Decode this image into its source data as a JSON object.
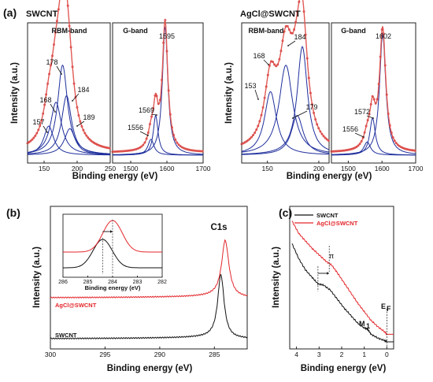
{
  "colors": {
    "fit": "#1f2f9c",
    "data": "#d9413f",
    "envelope": "#e05a55",
    "black": "#111111",
    "red": "#e3262b"
  },
  "chart_data": [
    {
      "id": "a1",
      "type": "line",
      "panel_label": "(a)",
      "sample": "SWCNT",
      "title": "RBM-band",
      "xlabel": "Binding energy (eV)",
      "ylabel": "Intensity (a.u.)",
      "xlim": [
        125,
        250
      ],
      "xticks": [
        "150",
        "200",
        "250"
      ],
      "peaks": [
        {
          "center": 157,
          "height": 0.22,
          "width": 9,
          "label": "157"
        },
        {
          "center": 168,
          "height": 0.4,
          "width": 10,
          "label": "168"
        },
        {
          "center": 178,
          "height": 0.68,
          "width": 9,
          "label": "178"
        },
        {
          "center": 184,
          "height": 0.45,
          "width": 9,
          "label": "184"
        },
        {
          "center": 189,
          "height": 0.2,
          "width": 10,
          "label": "189"
        }
      ]
    },
    {
      "id": "a2",
      "type": "line",
      "title": "G-band",
      "xlabel": "",
      "ylabel": "",
      "xlim": [
        1450,
        1700
      ],
      "xticks": [
        "1500",
        "1600",
        "1700"
      ],
      "peaks": [
        {
          "center": 1556,
          "height": 0.12,
          "width": 10,
          "label": "1556"
        },
        {
          "center": 1569,
          "height": 0.3,
          "width": 8,
          "label": "1569"
        },
        {
          "center": 1595,
          "height": 0.97,
          "width": 9,
          "label": "1595"
        }
      ]
    },
    {
      "id": "a3",
      "type": "line",
      "sample": "AgCl@SWCNT",
      "title": "RBM-band",
      "xlabel": "Binding energy (eV)",
      "ylabel": "Intensity (a.u.)",
      "xlim": [
        125,
        210
      ],
      "xticks": [
        "150",
        "200"
      ],
      "peaks": [
        {
          "center": 153,
          "height": 0.48,
          "width": 7,
          "label": "153"
        },
        {
          "center": 168,
          "height": 0.68,
          "width": 8,
          "label": "168"
        },
        {
          "center": 179,
          "height": 0.3,
          "width": 7,
          "label": "179"
        },
        {
          "center": 184,
          "height": 0.82,
          "width": 6,
          "label": "184"
        }
      ]
    },
    {
      "id": "a4",
      "type": "line",
      "title": "G-band",
      "xlabel": "",
      "ylabel": "",
      "xlim": [
        1450,
        1700
      ],
      "xticks": [
        "1500",
        "1600",
        "1700"
      ],
      "peaks": [
        {
          "center": 1556,
          "height": 0.1,
          "width": 12,
          "label": "1556"
        },
        {
          "center": 1572,
          "height": 0.28,
          "width": 10,
          "label": "1572"
        },
        {
          "center": 1602,
          "height": 0.92,
          "width": 11,
          "label": "1602"
        }
      ]
    },
    {
      "id": "b",
      "type": "line",
      "panel_label": "(b)",
      "xlabel": "Binding energy (eV)",
      "ylabel": "Intensity (a.u.)",
      "xlim": [
        300,
        282
      ],
      "xticks": [
        "300",
        "295",
        "290",
        "285"
      ],
      "peak_label": "C1s",
      "series": [
        {
          "name": "SWCNT",
          "center": 284.4,
          "height": 0.62,
          "width": 0.35
        },
        {
          "name": "AgCl@SWCNT",
          "center": 284.0,
          "height": 0.55,
          "width": 0.4
        }
      ],
      "inset": {
        "xlabel": "Binding energy (eV)",
        "xlim": [
          286,
          282
        ],
        "xticks": [
          "286",
          "285",
          "284",
          "283",
          "282"
        ],
        "series": [
          {
            "name": "SWCNT",
            "center": 284.4
          },
          {
            "name": "AgCl@SWCNT",
            "center": 284.0
          }
        ]
      }
    },
    {
      "id": "c",
      "type": "line",
      "panel_label": "(c)",
      "xlabel": "Binding energy (eV)",
      "ylabel": "Intensity (a.u.)",
      "xlim": [
        4.3,
        -0.3
      ],
      "xticks": [
        "4",
        "3",
        "2",
        "1",
        "0"
      ],
      "legend": [
        "SWCNT",
        "AgCl@SWCNT"
      ],
      "annotations": [
        "π",
        "M",
        "1",
        "E",
        "F"
      ],
      "series": [
        {
          "name": "SWCNT",
          "x": [
            4.2,
            3.9,
            3.6,
            3.3,
            3.05,
            2.8,
            2.5,
            2.2,
            1.9,
            1.6,
            1.3,
            1.0,
            0.85,
            0.7,
            0.4,
            0.1,
            0.0
          ],
          "y": [
            0.78,
            0.66,
            0.57,
            0.51,
            0.46,
            0.45,
            0.41,
            0.34,
            0.27,
            0.21,
            0.15,
            0.11,
            0.1,
            0.06,
            0.03,
            0.01,
            0.0
          ]
        },
        {
          "name": "AgCl@SWCNT",
          "x": [
            4.2,
            3.9,
            3.6,
            3.3,
            3.0,
            2.7,
            2.45,
            2.2,
            1.9,
            1.6,
            1.3,
            1.0,
            0.7,
            0.4,
            0.1,
            0.0
          ],
          "y": [
            0.96,
            0.86,
            0.8,
            0.74,
            0.69,
            0.64,
            0.61,
            0.55,
            0.47,
            0.39,
            0.31,
            0.24,
            0.17,
            0.12,
            0.08,
            0.06
          ]
        }
      ]
    }
  ]
}
